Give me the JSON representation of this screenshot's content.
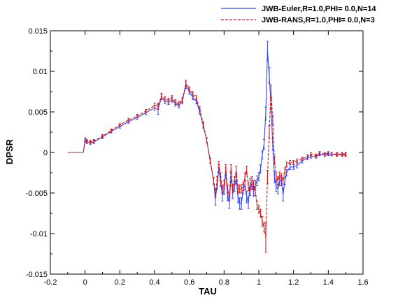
{
  "chart_data": {
    "type": "line",
    "xlabel": "TAU",
    "ylabel": "DPSR",
    "xlim": [
      -0.2,
      1.6
    ],
    "ylim": [
      -0.015,
      0.015
    ],
    "xticks": [
      "-0.2",
      "0",
      "0.2",
      "0.4",
      "0.6",
      "0.8",
      "1",
      "1.2",
      "1.4",
      "1.6"
    ],
    "yticks": [
      "-0.015",
      "-0.01",
      "-0.005",
      "0",
      "0.005",
      "0.01",
      "0.015"
    ],
    "legend_position": "top-right",
    "series": [
      {
        "name": "JWB-Euler,R=1.0,PHI= 0.0,N=14",
        "color": "#3344ff",
        "dash": "solid",
        "x": [
          -0.1,
          -0.05,
          -0.01,
          0.0,
          0.01,
          0.03,
          0.05,
          0.1,
          0.15,
          0.2,
          0.25,
          0.3,
          0.35,
          0.4,
          0.42,
          0.44,
          0.46,
          0.48,
          0.5,
          0.52,
          0.54,
          0.56,
          0.58,
          0.6,
          0.62,
          0.64,
          0.66,
          0.68,
          0.7,
          0.72,
          0.74,
          0.75,
          0.76,
          0.77,
          0.78,
          0.79,
          0.8,
          0.81,
          0.82,
          0.83,
          0.84,
          0.85,
          0.86,
          0.87,
          0.88,
          0.89,
          0.9,
          0.91,
          0.92,
          0.93,
          0.94,
          0.95,
          0.96,
          0.97,
          0.98,
          0.99,
          1.0,
          1.01,
          1.02,
          1.03,
          1.04,
          1.05,
          1.06,
          1.07,
          1.08,
          1.09,
          1.1,
          1.11,
          1.12,
          1.13,
          1.14,
          1.15,
          1.16,
          1.18,
          1.2,
          1.22,
          1.25,
          1.28,
          1.3,
          1.33,
          1.35,
          1.38,
          1.4,
          1.42,
          1.45,
          1.48,
          1.5
        ],
        "y": [
          0.0,
          0.0,
          0.0,
          0.0015,
          0.0013,
          0.0012,
          0.0013,
          0.0019,
          0.0026,
          0.0032,
          0.0038,
          0.0043,
          0.0049,
          0.0055,
          0.0053,
          0.0068,
          0.0063,
          0.0062,
          0.0065,
          0.006,
          0.0058,
          0.0063,
          0.0083,
          0.0075,
          0.0068,
          0.0063,
          0.005,
          0.0033,
          0.0015,
          -0.001,
          -0.0035,
          -0.0058,
          -0.004,
          -0.002,
          -0.0036,
          -0.0053,
          -0.0046,
          -0.0025,
          -0.0052,
          -0.0062,
          -0.003,
          -0.005,
          -0.0042,
          -0.0032,
          -0.0055,
          -0.0063,
          -0.0063,
          -0.0045,
          -0.004,
          -0.0055,
          -0.0062,
          -0.0038,
          -0.004,
          -0.0048,
          -0.004,
          -0.0035,
          -0.003,
          -0.002,
          -0.0003,
          0.001,
          0.0048,
          0.0125,
          0.0095,
          0.006,
          0.001,
          -0.003,
          -0.0042,
          -0.0045,
          -0.0035,
          -0.0035,
          -0.0052,
          -0.0035,
          -0.0025,
          -0.0018,
          -0.0018,
          -0.0016,
          -0.001,
          -0.0007,
          -0.0005,
          -0.0005,
          -0.0002,
          -0.0003,
          -0.0002,
          -0.0002,
          -0.0003,
          -0.0003,
          -0.0003
        ],
        "err": [
          0.0,
          0.0,
          0.0,
          0.0002,
          0.0002,
          0.0002,
          0.0002,
          0.0002,
          0.0002,
          0.0002,
          0.0002,
          0.0002,
          0.0002,
          0.0003,
          0.0006,
          0.0003,
          0.0003,
          0.0003,
          0.0003,
          0.0003,
          0.0003,
          0.0003,
          0.0004,
          0.0003,
          0.0003,
          0.0003,
          0.0003,
          0.0003,
          0.0003,
          0.0003,
          0.0004,
          0.0007,
          0.0006,
          0.0005,
          0.0006,
          0.0007,
          0.0006,
          0.0006,
          0.0007,
          0.0007,
          0.0006,
          0.0007,
          0.0006,
          0.0006,
          0.0007,
          0.0007,
          0.0007,
          0.0006,
          0.0006,
          0.0007,
          0.0007,
          0.0006,
          0.0006,
          0.0006,
          0.0006,
          0.0006,
          0.0005,
          0.0005,
          0.0005,
          0.0006,
          0.0008,
          0.0012,
          0.001,
          0.0008,
          0.0007,
          0.0007,
          0.0006,
          0.0006,
          0.0006,
          0.0006,
          0.0008,
          0.0005,
          0.0004,
          0.0003,
          0.0003,
          0.0003,
          0.0003,
          0.0002,
          0.0002,
          0.0002,
          0.0002,
          0.0002,
          0.0002,
          0.0002,
          0.0002,
          0.0002,
          0.0002
        ]
      },
      {
        "name": "JWB-RANS,R=1.0,PHI= 0.0,N=3",
        "color": "#dd1111",
        "dash": "dashed",
        "x": [
          -0.1,
          -0.05,
          -0.01,
          0.0,
          0.01,
          0.03,
          0.05,
          0.1,
          0.15,
          0.2,
          0.25,
          0.3,
          0.35,
          0.4,
          0.42,
          0.44,
          0.46,
          0.48,
          0.5,
          0.52,
          0.54,
          0.56,
          0.58,
          0.6,
          0.62,
          0.64,
          0.66,
          0.68,
          0.7,
          0.72,
          0.74,
          0.75,
          0.76,
          0.77,
          0.78,
          0.79,
          0.8,
          0.81,
          0.82,
          0.83,
          0.84,
          0.85,
          0.86,
          0.87,
          0.88,
          0.89,
          0.9,
          0.91,
          0.92,
          0.93,
          0.94,
          0.95,
          0.96,
          0.97,
          0.98,
          0.99,
          1.0,
          1.01,
          1.02,
          1.03,
          1.04,
          1.05,
          1.06,
          1.07,
          1.08,
          1.09,
          1.1,
          1.11,
          1.12,
          1.13,
          1.14,
          1.15,
          1.16,
          1.18,
          1.2,
          1.22,
          1.25,
          1.28,
          1.3,
          1.33,
          1.35,
          1.38,
          1.4,
          1.42,
          1.45,
          1.48,
          1.5
        ],
        "y": [
          0.0,
          0.0,
          0.0,
          0.0016,
          0.0014,
          0.0013,
          0.0014,
          0.002,
          0.0027,
          0.0034,
          0.004,
          0.0045,
          0.0051,
          0.0058,
          0.0057,
          0.007,
          0.0066,
          0.0064,
          0.0067,
          0.0062,
          0.006,
          0.0065,
          0.0085,
          0.0078,
          0.0072,
          0.0067,
          0.0053,
          0.0035,
          0.0015,
          -0.001,
          -0.0035,
          -0.005,
          -0.0035,
          -0.0015,
          -0.003,
          -0.0045,
          -0.004,
          -0.002,
          -0.0045,
          -0.0055,
          -0.002,
          -0.0045,
          -0.0035,
          -0.0022,
          -0.0045,
          -0.0045,
          -0.0045,
          -0.0042,
          -0.003,
          -0.0022,
          -0.0042,
          -0.0048,
          -0.0035,
          -0.004,
          -0.0048,
          -0.0065,
          -0.007,
          -0.0075,
          -0.0085,
          -0.0092,
          -0.0105,
          -0.003,
          0.0025,
          0.0075,
          0.004,
          -0.001,
          -0.003,
          -0.0035,
          -0.0028,
          -0.003,
          -0.0035,
          -0.0022,
          -0.0015,
          -0.0012,
          -0.0012,
          -0.001,
          -0.0008,
          -0.0005,
          -0.0002,
          -0.0004,
          -0.0001,
          -0.0002,
          -0.0001,
          -0.0002,
          -0.0002,
          -0.0002,
          -0.0002
        ],
        "err": [
          0.0,
          0.0,
          0.0,
          0.0002,
          0.0002,
          0.0002,
          0.0002,
          0.0002,
          0.0002,
          0.0002,
          0.0002,
          0.0002,
          0.0002,
          0.0003,
          0.0004,
          0.0003,
          0.0003,
          0.0003,
          0.0003,
          0.0003,
          0.0003,
          0.0003,
          0.0004,
          0.0003,
          0.0003,
          0.0003,
          0.0003,
          0.0003,
          0.0003,
          0.0003,
          0.0004,
          0.0005,
          0.0005,
          0.0004,
          0.0005,
          0.0005,
          0.0005,
          0.0005,
          0.0005,
          0.0005,
          0.0005,
          0.0005,
          0.0005,
          0.0005,
          0.0005,
          0.0005,
          0.0005,
          0.0005,
          0.0005,
          0.0005,
          0.0005,
          0.0005,
          0.0005,
          0.0005,
          0.0005,
          0.0005,
          0.0005,
          0.0005,
          0.0006,
          0.0006,
          0.0018,
          0.0008,
          0.0008,
          0.0008,
          0.0006,
          0.0005,
          0.0005,
          0.0005,
          0.0004,
          0.0004,
          0.0004,
          0.0003,
          0.0003,
          0.0002,
          0.0002,
          0.0002,
          0.0002,
          0.0002,
          0.0002,
          0.0002,
          0.0002,
          0.0002,
          0.0002,
          0.0002,
          0.0002,
          0.0002,
          0.0002
        ]
      }
    ]
  }
}
